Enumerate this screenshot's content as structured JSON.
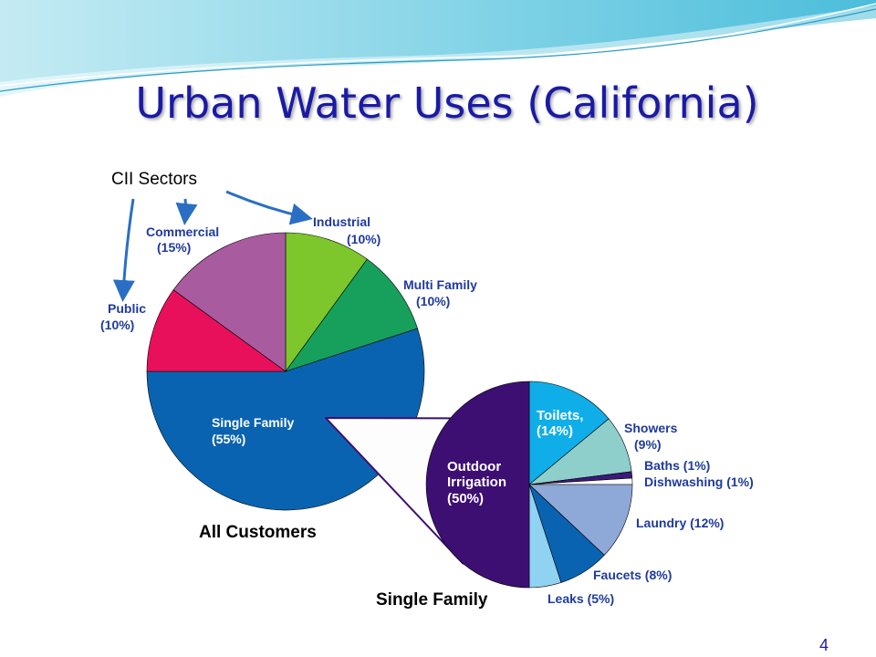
{
  "slide": {
    "title": "Urban Water Uses (California)",
    "cii_label": "CII Sectors",
    "page_number": "4"
  },
  "colors": {
    "title": "#1a1aa6",
    "label": "#1f3a9e",
    "arrow": "#2a6fc4"
  },
  "chart_data": [
    {
      "type": "pie",
      "title": "All Customers",
      "slices": [
        {
          "label": "Industrial",
          "value_label": "(10%)",
          "value": 10,
          "color": "#7dc62c"
        },
        {
          "label": "Multi Family",
          "value_label": "(10%)",
          "value": 10,
          "color": "#16a05c"
        },
        {
          "label": "Single Family",
          "value_label": "(55%)",
          "value": 55,
          "color": "#0a63b0"
        },
        {
          "label": "Public",
          "value_label": "(10%)",
          "value": 10,
          "color": "#e8105a"
        },
        {
          "label": "Commercial",
          "value_label": "(15%)",
          "value": 15,
          "color": "#a85b9f"
        }
      ]
    },
    {
      "type": "pie",
      "title": "Single Family",
      "slices": [
        {
          "label": "Toilets,",
          "value_label": "(14%)",
          "value": 14,
          "color": "#10aee8"
        },
        {
          "label": "Showers",
          "value_label": "(9%)",
          "value": 9,
          "color": "#8ecfcb"
        },
        {
          "label": "Baths (1%)",
          "value_label": "",
          "value": 1,
          "color": "#3b1a7a"
        },
        {
          "label": "Dishwashing (1%)",
          "value_label": "",
          "value": 1,
          "color": "#ffffff"
        },
        {
          "label": "Laundry (12%)",
          "value_label": "",
          "value": 12,
          "color": "#8ea8d8"
        },
        {
          "label": "Faucets (8%)",
          "value_label": "",
          "value": 8,
          "color": "#0a63b0"
        },
        {
          "label": "Leaks (5%)",
          "value_label": "",
          "value": 5,
          "color": "#8fd2f2"
        },
        {
          "label": "Outdoor",
          "label2": "Irrigation",
          "value_label": "(50%)",
          "value": 50,
          "color": "#3d0f73"
        }
      ]
    }
  ]
}
